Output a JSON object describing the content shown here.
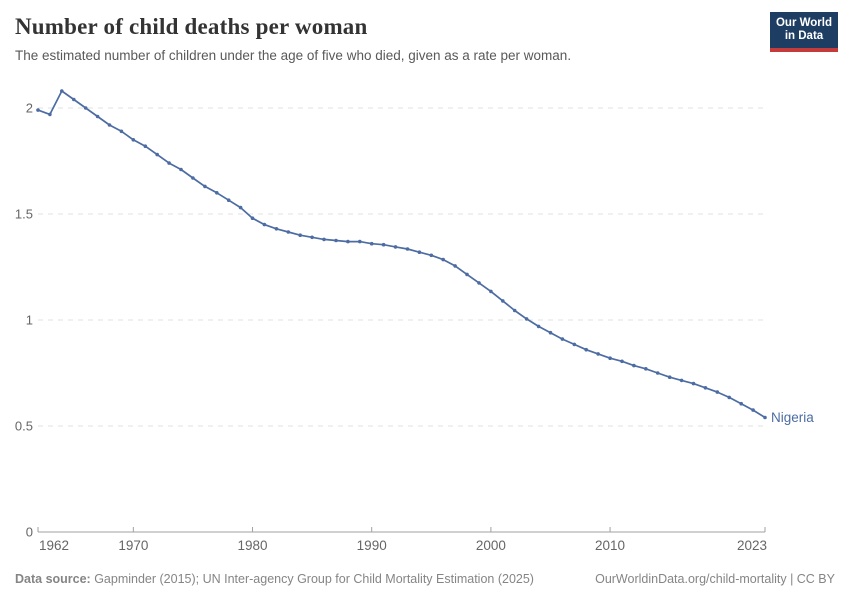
{
  "header": {
    "title": "Number of child deaths per woman",
    "subtitle": "The estimated number of children under the age of five who died, given as a rate per woman.",
    "logo": {
      "line1": "Our World",
      "line2": "in Data"
    }
  },
  "chart_data": {
    "type": "line",
    "title": "Number of child deaths per woman",
    "subtitle": "The estimated number of children under the age of five who died, given as a rate per woman.",
    "entity_label": "Nigeria",
    "x": [
      1962,
      1963,
      1964,
      1965,
      1966,
      1967,
      1968,
      1969,
      1970,
      1971,
      1972,
      1973,
      1974,
      1975,
      1976,
      1977,
      1978,
      1979,
      1980,
      1981,
      1982,
      1983,
      1984,
      1985,
      1986,
      1987,
      1988,
      1989,
      1990,
      1991,
      1992,
      1993,
      1994,
      1995,
      1996,
      1997,
      1998,
      1999,
      2000,
      2001,
      2002,
      2003,
      2004,
      2005,
      2006,
      2007,
      2008,
      2009,
      2010,
      2011,
      2012,
      2013,
      2014,
      2015,
      2016,
      2017,
      2018,
      2019,
      2020,
      2021,
      2022,
      2023
    ],
    "series": [
      {
        "name": "Nigeria",
        "color": "#4C6CA3",
        "values": [
          1.99,
          1.97,
          2.08,
          2.04,
          2.0,
          1.96,
          1.92,
          1.89,
          1.85,
          1.82,
          1.78,
          1.74,
          1.71,
          1.67,
          1.63,
          1.6,
          1.565,
          1.53,
          1.48,
          1.45,
          1.43,
          1.415,
          1.4,
          1.39,
          1.38,
          1.375,
          1.37,
          1.37,
          1.36,
          1.355,
          1.345,
          1.335,
          1.32,
          1.305,
          1.285,
          1.255,
          1.215,
          1.175,
          1.135,
          1.09,
          1.045,
          1.005,
          0.97,
          0.94,
          0.91,
          0.885,
          0.86,
          0.84,
          0.82,
          0.805,
          0.785,
          0.77,
          0.75,
          0.73,
          0.715,
          0.7,
          0.68,
          0.66,
          0.635,
          0.605,
          0.575,
          0.54
        ]
      }
    ],
    "xlabel": "",
    "ylabel": "",
    "xlim": [
      1962,
      2023
    ],
    "ylim": [
      0,
      2.12
    ],
    "x_ticks": [
      1962,
      1970,
      1980,
      1990,
      2000,
      2010,
      2023
    ],
    "y_ticks": [
      0,
      0.5,
      1,
      1.5,
      2
    ],
    "y_tick_labels": [
      "0",
      "0.5",
      "1",
      "1.5",
      "2"
    ],
    "grid": "horizontal dashed",
    "legend_position": "end-of-line label",
    "markers": true
  },
  "footer": {
    "source_label": "Data source:",
    "source_text": " Gapminder (2015); UN Inter-agency Group for Child Mortality Estimation (2025)",
    "link_text": "OurWorldinData.org/child-mortality | CC BY"
  },
  "colors": {
    "line": "#4C6CA3",
    "entity_label": "#4C6CA3",
    "axis": "#a1a1a1",
    "grid": "#e2e2e2",
    "tick_label": "#666666",
    "title": "#333333",
    "subtitle": "#595959",
    "footer_text": "#858585",
    "logo_bg": "#1d3d63",
    "logo_bar": "#c43b3b"
  }
}
